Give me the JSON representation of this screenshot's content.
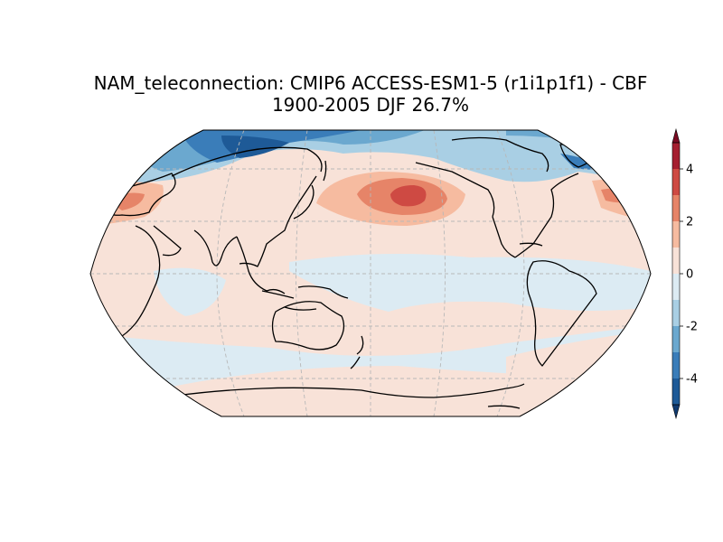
{
  "figure": {
    "title_line1": "NAM_teleconnection: CMIP6 ACCESS-ESM1-5 (r1i1p1f1) - CBF",
    "title_line2": "1900-2005 DJF 26.7%"
  },
  "map": {
    "projection": "Robinson",
    "central_longitude": 180,
    "gridlines": true,
    "coastlines": true,
    "land_fill": "none"
  },
  "colorbar": {
    "cmap": "RdBu_r",
    "vmin": -5,
    "vmax": 5,
    "extend": "both",
    "ticks": [
      "-4",
      "-2",
      "0",
      "2",
      "4"
    ],
    "tick_values": [
      -4,
      -2,
      0,
      2,
      4
    ],
    "levels": [
      -5,
      -4,
      -3,
      -2,
      -1,
      0,
      1,
      2,
      3,
      4,
      5
    ],
    "colors": [
      "#1e5a97",
      "#3a7db9",
      "#6ba8cf",
      "#a9cfe4",
      "#dcebf3",
      "#f8e2d8",
      "#f6bba0",
      "#e68468",
      "#ce4a43",
      "#a51f30"
    ],
    "under_color": "#103a70",
    "over_color": "#7a0b22"
  }
}
